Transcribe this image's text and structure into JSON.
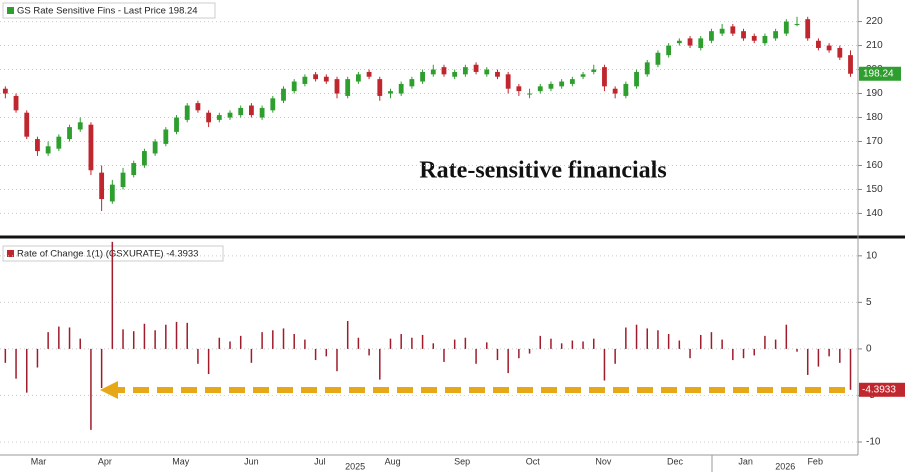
{
  "chart_data": [
    {
      "type": "candlestick",
      "legend": "GS Rate Sensitive Fins - Last Price 198.24",
      "annotation": "Rate-sensitive financials",
      "up_color": "#2e9e2e",
      "down_color": "#c0262e",
      "open": [
        192,
        189,
        182,
        171,
        165,
        167,
        171,
        175,
        177,
        157,
        145,
        151,
        156,
        160,
        165,
        169,
        174,
        179,
        186,
        182,
        179,
        180,
        181,
        185,
        180,
        183,
        187,
        191,
        194,
        198,
        197,
        196,
        189,
        195,
        199,
        196,
        190,
        190,
        193,
        195,
        198,
        201,
        197,
        198,
        202,
        198,
        199,
        198,
        193,
        190,
        191,
        192,
        193,
        194,
        197,
        199,
        201,
        192,
        189,
        193,
        198,
        202,
        206,
        211,
        213,
        209,
        212,
        215,
        218,
        216,
        214,
        211,
        213,
        215,
        219,
        221,
        212,
        210,
        209,
        206
      ],
      "high": [
        193,
        190,
        183,
        172,
        170,
        173,
        177,
        180,
        178,
        160,
        154,
        159,
        162,
        167,
        171,
        176,
        181,
        186,
        187,
        183,
        182,
        183,
        185,
        186,
        185,
        189,
        193,
        196,
        198,
        199,
        198,
        197,
        197,
        199,
        200,
        197,
        192,
        195,
        197,
        200,
        202,
        202,
        200,
        202,
        203,
        201,
        200,
        199,
        194,
        192,
        194,
        195,
        196,
        197,
        199,
        202,
        202,
        193,
        195,
        200,
        204,
        208,
        211,
        213,
        214,
        214,
        217,
        219,
        219,
        217,
        215,
        215,
        217,
        221,
        222,
        222,
        213,
        211,
        210,
        208
      ],
      "low": [
        188,
        182,
        171,
        164,
        164,
        166,
        170,
        174,
        156,
        141,
        144,
        150,
        155,
        159,
        164,
        168,
        173,
        178,
        182,
        176,
        178,
        179,
        180,
        180,
        179,
        182,
        186,
        190,
        193,
        195,
        194,
        188,
        188,
        194,
        196,
        187,
        188,
        189,
        192,
        194,
        197,
        197,
        196,
        197,
        198,
        197,
        196,
        190,
        189,
        188,
        190,
        191,
        192,
        193,
        196,
        198,
        191,
        188,
        188,
        192,
        197,
        201,
        205,
        210,
        209,
        208,
        211,
        214,
        214,
        212,
        211,
        210,
        212,
        214,
        218,
        212,
        208,
        207,
        204,
        197
      ],
      "close": [
        190,
        183,
        172,
        166,
        168,
        172,
        176,
        178,
        158,
        146,
        152,
        157,
        161,
        166,
        170,
        175,
        180,
        185,
        183,
        178,
        181,
        182,
        184,
        181,
        184,
        188,
        192,
        195,
        197,
        196,
        195,
        190,
        196,
        198,
        197,
        189,
        191,
        194,
        196,
        199,
        200,
        198,
        199,
        201,
        199,
        200,
        197,
        192,
        191,
        190,
        193,
        194,
        195,
        196,
        198,
        200,
        193,
        190,
        194,
        199,
        203,
        207,
        210,
        212,
        210,
        213,
        216,
        217,
        215,
        213,
        212,
        214,
        216,
        220,
        219,
        213,
        209,
        208,
        205,
        198.24
      ],
      "xlim": [
        -0.5,
        79.7
      ],
      "ylim": [
        131,
        229
      ],
      "yticks": [
        140,
        150,
        160,
        170,
        180,
        190,
        200,
        210,
        220
      ],
      "grid": true
    },
    {
      "type": "bar",
      "legend": "Rate of Change 1(1) (GSXURATE) -4.3933",
      "color": "#a01c2c",
      "values": [
        -1.5,
        -3.2,
        -4.7,
        -2.0,
        1.8,
        2.4,
        2.3,
        1.1,
        -8.7,
        -4.2,
        11.5,
        2.1,
        1.9,
        2.7,
        2.0,
        2.6,
        2.9,
        2.8,
        -1.6,
        -2.7,
        1.2,
        0.8,
        1.4,
        -1.5,
        1.8,
        2.0,
        2.2,
        1.6,
        1.0,
        -1.2,
        -0.8,
        -2.4,
        3.0,
        1.2,
        -0.7,
        -3.3,
        1.1,
        1.6,
        1.2,
        1.5,
        0.6,
        -1.4,
        1.0,
        1.2,
        -1.6,
        0.7,
        -1.2,
        -2.6,
        -1.0,
        -0.5,
        1.4,
        1.1,
        0.6,
        0.9,
        0.8,
        1.1,
        -3.4,
        -1.6,
        2.3,
        2.6,
        2.2,
        2.0,
        1.6,
        0.9,
        -1.0,
        1.5,
        1.8,
        1.0,
        -1.2,
        -1.0,
        -0.7,
        1.4,
        1.0,
        2.6,
        -0.3,
        -2.8,
        -1.9,
        -0.8,
        -1.5,
        -4.3933
      ],
      "xlim": [
        -0.5,
        79.7
      ],
      "xticks": [
        {
          "value": 3.1,
          "label": "Mar"
        },
        {
          "value": 9.3,
          "label": "Apr"
        },
        {
          "value": 16.4,
          "label": "May"
        },
        {
          "value": 23,
          "label": "Jun"
        },
        {
          "value": 29.4,
          "label": "Jul"
        },
        {
          "value": 36.2,
          "label": "Aug"
        },
        {
          "value": 42.7,
          "label": "Sep"
        },
        {
          "value": 49.3,
          "label": "Oct"
        },
        {
          "value": 55.9,
          "label": "Nov"
        },
        {
          "value": 62.6,
          "label": "Dec"
        },
        {
          "value": 69.2,
          "label": "Jan"
        },
        {
          "value": 75.7,
          "label": "Feb"
        }
      ],
      "year_ticks": [
        {
          "value": 32.7,
          "label": "2025"
        },
        {
          "value": 72.9,
          "label": "2026"
        }
      ],
      "ylim": [
        -11.4,
        11.7
      ],
      "yticks": [
        -10,
        -5,
        0,
        5,
        10
      ],
      "grid": true
    }
  ]
}
